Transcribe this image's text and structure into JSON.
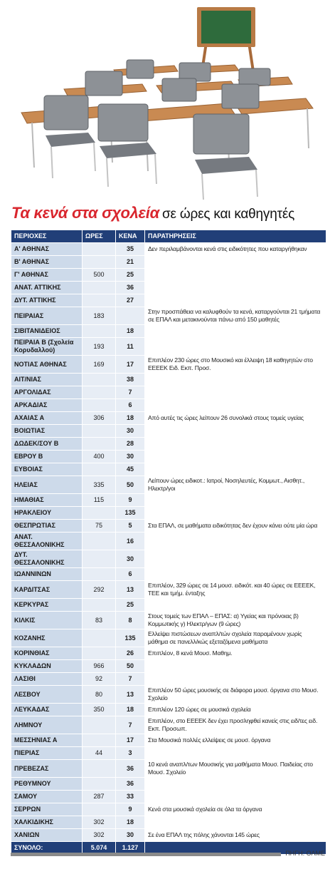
{
  "title": {
    "main": "Τα κενά στα σχολεία",
    "sub": "σε ώρες και καθηγητές"
  },
  "table": {
    "header": [
      "ΠΕΡΙΟΧΕΣ",
      "ΩΡΕΣ",
      "ΚΕΝΑ",
      "ΠΑΡΑΤΗΡΗΣΕΙΣ"
    ],
    "rows": [
      [
        "Α' ΑΘΗΝΑΣ",
        null,
        35,
        "Δεν περιλαμβάνονται κενά στις ειδικότητες που καταργήθηκαν"
      ],
      [
        "Β' ΑΘΗΝΑΣ",
        null,
        21,
        null
      ],
      [
        "Γ' ΑΘΗΝΑΣ",
        500,
        25,
        null
      ],
      [
        "ΑΝΑΤ. ΑΤΤΙΚΗΣ",
        null,
        36,
        null
      ],
      [
        "ΔΥΤ. ΑΤΤΙΚΗΣ",
        null,
        27,
        null
      ],
      [
        "ΠΕΙΡΑΙΑΣ",
        183,
        null,
        "Στην προσπάθεια να καλυφθούν τα κενά, καταργούνται 21 τμήματα σε ΕΠΑΛ και μετακινούνται πάνω από 150 μαθητές"
      ],
      [
        "ΣΙΒΙΤΑΝΙΔΕΙΟΣ",
        null,
        18,
        null
      ],
      [
        "ΠΕΙΡΑΙΑ Β (Σχολεία Κορυδαλλού)",
        193,
        11,
        null
      ],
      [
        "ΝΟΤΙΑΣ ΑΘΗΝΑΣ",
        169,
        17,
        "Επιπλέον 230 ώρες στο Μουσικό και έλλειψη 18 καθηγητών στο ΕΕΕΕΚ Ειδ. Εκπ. Προσ."
      ],
      [
        "ΑΙΤ/ΝΙΑΣ",
        null,
        38,
        null
      ],
      [
        "ΑΡΓΟΛΙΔΑΣ",
        null,
        7,
        null
      ],
      [
        "ΑΡΚΑΔΙΑΣ",
        null,
        6,
        null
      ],
      [
        "ΑΧΑΙΑΣ Α",
        306,
        18,
        "Από αυτές τις ώρες λείπουν 26 συνολικά στους τομείς υγείας"
      ],
      [
        "ΒΟΙΩΤΙΑΣ",
        null,
        30,
        null
      ],
      [
        "ΔΩΔΕΚ/ΣΟΥ Β",
        null,
        28,
        null
      ],
      [
        "ΕΒΡΟΥ Β",
        400,
        30,
        null
      ],
      [
        "ΕΥΒΟΙΑΣ",
        null,
        45,
        null
      ],
      [
        "ΗΛΕΙΑΣ",
        335,
        50,
        "Λείπουν ώρες ειδικοτ.: Ιατροί, Νοσηλευτές, Κομμωτ., Αισθητ., Ηλεκτρ/γοι"
      ],
      [
        "ΗΜΑΘΙΑΣ",
        115,
        9,
        null
      ],
      [
        "ΗΡΑΚΛΕΙΟΥ",
        null,
        135,
        null
      ],
      [
        "ΘΕΣΠΡΩΤΙΑΣ",
        75,
        5,
        "Στα ΕΠΑΛ, σε μαθήματα ειδικότητας δεν έχουν κάνει ούτε μία ώρα"
      ],
      [
        "ΑΝΑΤ. ΘΕΣΣΑΛΟΝΙΚΗΣ",
        null,
        16,
        null
      ],
      [
        "ΔΥΤ. ΘΕΣΣΑΛΟΝΙΚΗΣ",
        null,
        30,
        null
      ],
      [
        "ΙΩΑΝΝΙΝΩΝ",
        null,
        6,
        null
      ],
      [
        "ΚΑΡΔΙΤΣΑΣ",
        292,
        13,
        "Επιπλέον, 329 ώρες σε 14 μουσ. ειδικότ. και 40 ώρες σε ΕΕΕΕΚ, ΤΕΕ και τμήμ. ένταξης"
      ],
      [
        "ΚΕΡΚΥΡΑΣ",
        null,
        25,
        null
      ],
      [
        "ΚΙΛΚΙΣ",
        83,
        8,
        "Στους τομείς των ΕΠΑΛ – ΕΠΑΣ: α) Υγείας και πρόνοιας β) Κομμωτικής γ) Ηλεκτρ/γων (9 ώρες)"
      ],
      [
        "ΚΟΖΑΝΗΣ",
        null,
        135,
        "Ελλείψει πιστώσεων αναπλ/τών σχολεία παραμένουν χωρίς μάθημα σε πανελλ/κώς εξεταζόμενα μαθήματα"
      ],
      [
        "ΚΟΡΙΝΘΙΑΣ",
        null,
        26,
        "Επιπλέον, 8 κενά Μουσ. Μαθημ."
      ],
      [
        "ΚΥΚΛΑΔΩΝ",
        966,
        50,
        null
      ],
      [
        "ΛΑΣΙΘΙ",
        92,
        7,
        null
      ],
      [
        "ΛΕΣΒΟΥ",
        80,
        13,
        "Επιπλέον 50 ώρες μουσικής σε διάφορα μουσ. όργανα στο Μουσ. Σχολείο"
      ],
      [
        "ΛΕΥΚΑΔΑΣ",
        350,
        18,
        "Επιπλέον 120 ώρες σε μουσικά σχολεία"
      ],
      [
        "ΛΗΜΝΟΥ",
        null,
        7,
        "Επιπλέον, στο ΕΕΕΕΚ δεν έχει προσληφθεί κανείς στις ειδ/τες ειδ. Εκπ. Προσωπ."
      ],
      [
        "ΜΕΣΣΗΝΙΑΣ Α",
        null,
        17,
        "Στα Μουσικά πολλές ελλείψεις σε μουσ. όργανα"
      ],
      [
        "ΠΙΕΡΙΑΣ",
        44,
        3,
        null
      ],
      [
        "ΠΡΕΒΕΖΑΣ",
        null,
        36,
        "10 κενά αναπλ/των Μουσικής για μαθήματα Μουσ. Παιδείας στο Μουσ. Σχολείο"
      ],
      [
        "ΡΕΘΥΜΝΟΥ",
        null,
        36,
        null
      ],
      [
        "ΣΑΜΟΥ",
        287,
        33,
        null
      ],
      [
        "ΣΕΡΡΩΝ",
        null,
        9,
        "Κενά στα μουσικά σχολεία σε όλα τα όργανα"
      ],
      [
        "ΧΑΛΚΙΔΙΚΗΣ",
        302,
        18,
        null
      ],
      [
        "ΧΑΝΙΩΝ",
        302,
        30,
        "Σε ένα ΕΠΑΛ της πόλης χάνονται 145 ώρες"
      ]
    ],
    "total": [
      "ΣΥΝΟΛΟ:",
      "5.074",
      "1.127"
    ]
  },
  "source": "ΠΗΓΗ: ΟΛΜΕ"
}
